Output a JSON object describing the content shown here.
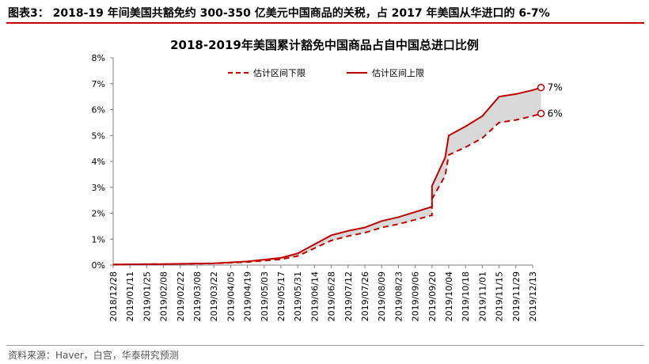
{
  "figure": {
    "title": "图表3： 2018-19 年间美国共豁免约 300-350 亿美元中国商品的关税，占 2017 年美国从华进口的 6-7%",
    "source": "资料来源：Haver，白宫，华泰研究预测"
  },
  "colors": {
    "accent": "#c00000",
    "band": "#d9d9d9",
    "axis": "#808080"
  },
  "chart_data": {
    "type": "line",
    "title": "2018-2019年美国累计豁免中国商品占自中国总进口比例",
    "xlabel": "",
    "ylabel": "",
    "ylim": [
      0,
      8
    ],
    "yticks": [
      "0%",
      "1%",
      "2%",
      "3%",
      "4%",
      "5%",
      "6%",
      "7%",
      "8%"
    ],
    "categories": [
      "2018/12/28",
      "2019/01/11",
      "2019/01/25",
      "2019/02/08",
      "2019/02/22",
      "2019/03/08",
      "2019/03/22",
      "2019/04/05",
      "2019/04/19",
      "2019/05/03",
      "2019/05/17",
      "2019/05/31",
      "2019/06/14",
      "2019/06/28",
      "2019/07/12",
      "2019/07/26",
      "2019/08/09",
      "2019/08/23",
      "2019/09/06",
      "2019/09/20",
      "2019/10/04",
      "2019/10/18",
      "2019/11/01",
      "2019/11/15",
      "2019/11/29",
      "2019/12/13"
    ],
    "series": [
      {
        "name": "估计区间下限",
        "style": "dashed",
        "points": [
          [
            "2018/12/28",
            0.02
          ],
          [
            "2019/01/11",
            0.03
          ],
          [
            "2019/02/08",
            0.04
          ],
          [
            "2019/03/22",
            0.06
          ],
          [
            "2019/04/19",
            0.12
          ],
          [
            "2019/05/17",
            0.22
          ],
          [
            "2019/05/31",
            0.35
          ],
          [
            "2019/06/14",
            0.65
          ],
          [
            "2019/06/28",
            0.95
          ],
          [
            "2019/07/12",
            1.12
          ],
          [
            "2019/07/26",
            1.25
          ],
          [
            "2019/08/09",
            1.45
          ],
          [
            "2019/08/23",
            1.58
          ],
          [
            "2019/09/06",
            1.75
          ],
          [
            "2019/09/20",
            1.92
          ],
          [
            "2019/09/20",
            2.55
          ],
          [
            "2019/10/01",
            3.45
          ],
          [
            "2019/10/04",
            4.25
          ],
          [
            "2019/10/18",
            4.55
          ],
          [
            "2019/11/01",
            4.9
          ],
          [
            "2019/11/15",
            5.5
          ],
          [
            "2019/11/29",
            5.6
          ],
          [
            "2019/12/13",
            5.75
          ],
          [
            "2019/12/20",
            5.85
          ]
        ]
      },
      {
        "name": "估计区间上限",
        "style": "solid",
        "points": [
          [
            "2018/12/28",
            0.02
          ],
          [
            "2019/01/11",
            0.03
          ],
          [
            "2019/02/08",
            0.04
          ],
          [
            "2019/03/22",
            0.07
          ],
          [
            "2019/04/19",
            0.14
          ],
          [
            "2019/05/17",
            0.28
          ],
          [
            "2019/05/31",
            0.45
          ],
          [
            "2019/06/14",
            0.8
          ],
          [
            "2019/06/28",
            1.15
          ],
          [
            "2019/07/12",
            1.32
          ],
          [
            "2019/07/26",
            1.45
          ],
          [
            "2019/08/09",
            1.7
          ],
          [
            "2019/08/23",
            1.85
          ],
          [
            "2019/09/06",
            2.05
          ],
          [
            "2019/09/20",
            2.25
          ],
          [
            "2019/09/20",
            3.05
          ],
          [
            "2019/10/01",
            4.15
          ],
          [
            "2019/10/04",
            5.0
          ],
          [
            "2019/10/18",
            5.35
          ],
          [
            "2019/11/01",
            5.75
          ],
          [
            "2019/11/15",
            6.5
          ],
          [
            "2019/11/29",
            6.6
          ],
          [
            "2019/12/13",
            6.75
          ],
          [
            "2019/12/20",
            6.85
          ]
        ]
      }
    ],
    "end_labels": [
      {
        "series": "估计区间上限",
        "label": "7%"
      },
      {
        "series": "估计区间下限",
        "label": "6%"
      }
    ],
    "legend": "top",
    "grid": false
  }
}
